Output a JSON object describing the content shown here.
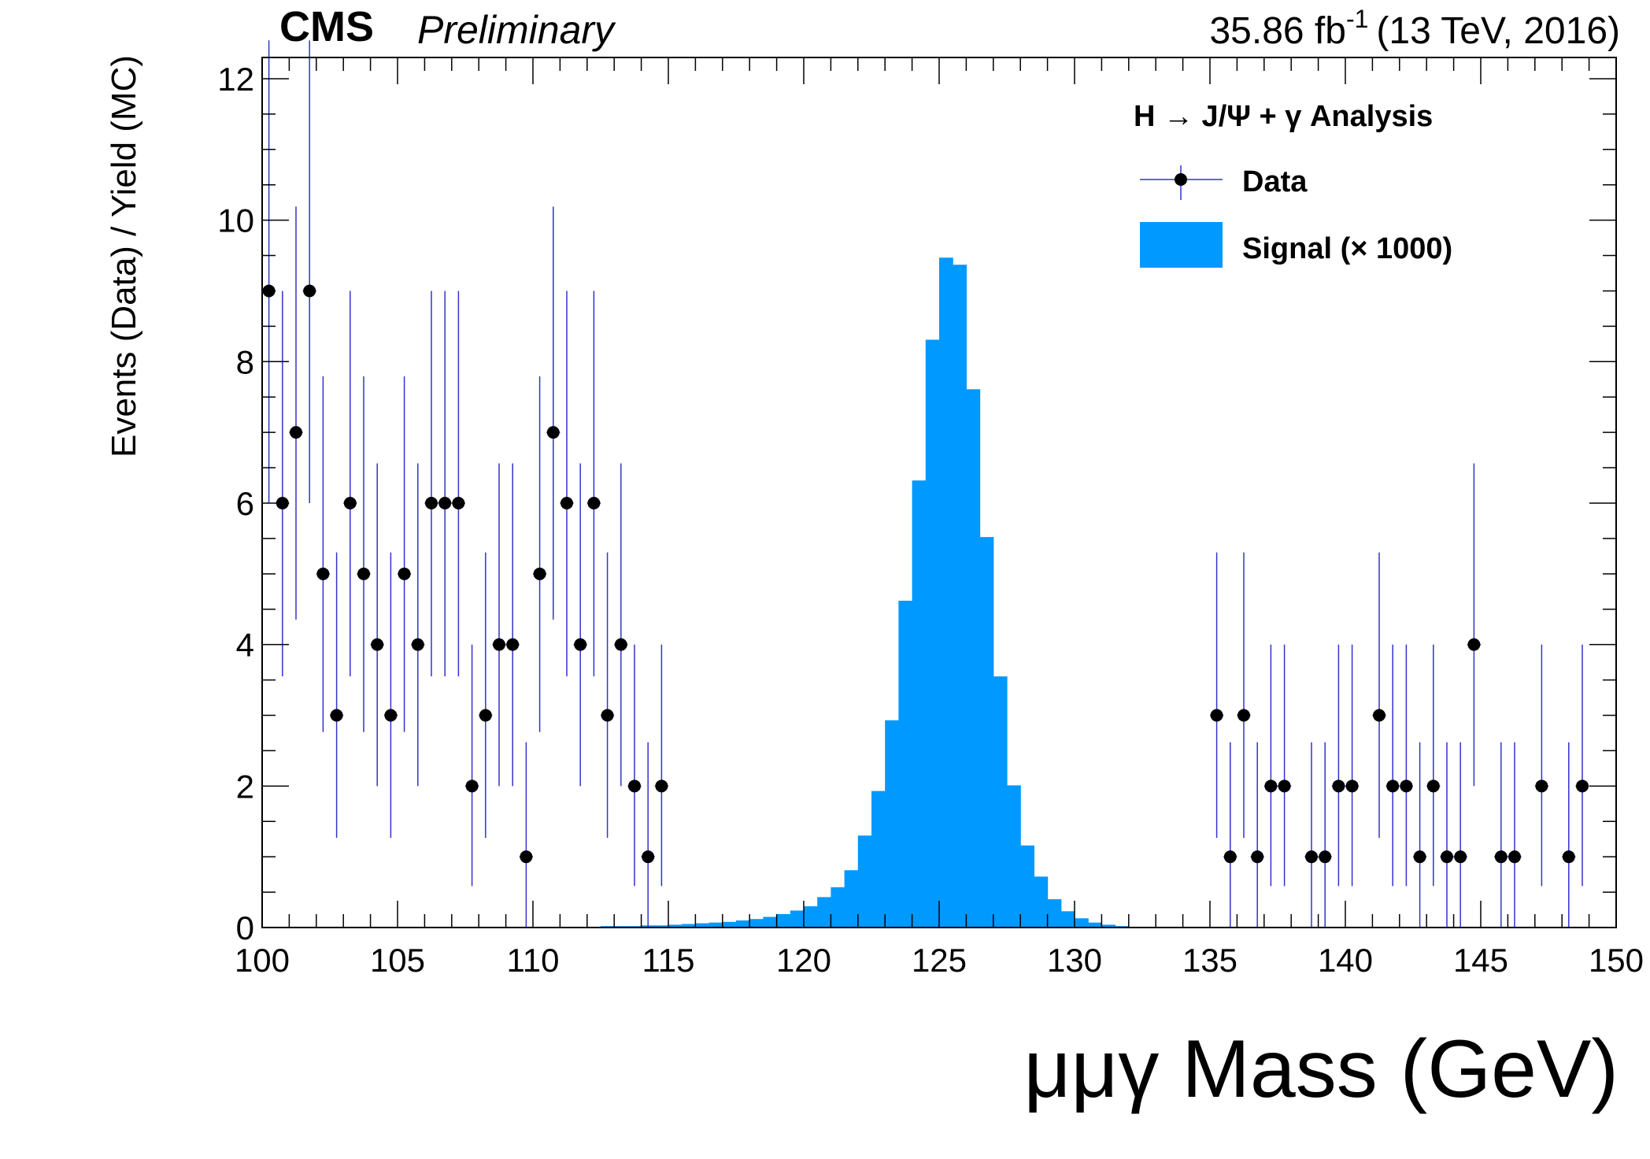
{
  "header": {
    "experiment": "CMS",
    "status": "Preliminary",
    "lumi_value": "35.86 fb",
    "lumi_exponent": "-1",
    "lumi_conditions": "(13 TeV, 2016)"
  },
  "legend": {
    "title": "H → J/Ψ + γ Analysis",
    "data_label": "Data",
    "signal_label": "Signal (× 1000)"
  },
  "colors": {
    "signal_fill": "#0099ff",
    "error_bar": "#3333cc",
    "marker": "#000000",
    "frame": "#000000"
  },
  "chart_data": {
    "type": "bar",
    "xlabel": "μμγ Mass (GeV)",
    "ylabel": "Events (Data) / Yield (MC)",
    "xlim": [
      100,
      150
    ],
    "ylim": [
      0,
      12.3
    ],
    "xticks": [
      100,
      105,
      110,
      115,
      120,
      125,
      130,
      135,
      140,
      145,
      150
    ],
    "yticks": [
      0,
      2,
      4,
      6,
      8,
      10,
      12
    ],
    "grid": false,
    "legend_position": "top-right",
    "series": [
      {
        "name": "Data",
        "kind": "points-with-errors",
        "bin_width": 0.5,
        "x": [
          100.25,
          100.75,
          101.25,
          101.75,
          102.25,
          102.75,
          103.25,
          103.75,
          104.25,
          104.75,
          105.25,
          105.75,
          106.25,
          106.75,
          107.25,
          107.75,
          108.25,
          108.75,
          109.25,
          109.75,
          110.25,
          110.75,
          111.25,
          111.75,
          112.25,
          112.75,
          113.25,
          113.75,
          114.25,
          114.75,
          135.25,
          135.75,
          136.25,
          136.75,
          137.25,
          137.75,
          138.75,
          139.25,
          139.75,
          140.25,
          141.25,
          141.75,
          142.25,
          142.75,
          143.25,
          143.75,
          144.25,
          144.75,
          145.75,
          146.25,
          147.25,
          148.25,
          148.75
        ],
        "y": [
          9,
          6,
          7,
          9,
          5,
          3,
          6,
          5,
          4,
          3,
          5,
          4,
          6,
          6,
          6,
          2,
          3,
          4,
          4,
          1,
          5,
          7,
          6,
          4,
          6,
          3,
          4,
          2,
          1,
          2,
          3,
          1,
          3,
          1,
          2,
          2,
          1,
          1,
          2,
          2,
          3,
          2,
          2,
          1,
          2,
          1,
          1,
          4,
          1,
          1,
          2,
          1,
          2
        ]
      },
      {
        "name": "Signal (× 1000)",
        "kind": "histogram",
        "bin_edges_start": 100,
        "bin_width": 0.5,
        "values": [
          0.01,
          0.01,
          0.01,
          0.01,
          0.01,
          0.01,
          0.01,
          0.01,
          0.01,
          0.01,
          0.01,
          0.01,
          0.01,
          0.01,
          0.01,
          0.01,
          0.01,
          0.01,
          0.01,
          0.01,
          0.01,
          0.01,
          0.01,
          0.01,
          0.01,
          0.02,
          0.02,
          0.02,
          0.03,
          0.03,
          0.04,
          0.05,
          0.06,
          0.07,
          0.08,
          0.1,
          0.12,
          0.15,
          0.19,
          0.24,
          0.3,
          0.43,
          0.57,
          0.81,
          1.3,
          1.93,
          2.93,
          4.62,
          6.32,
          8.31,
          9.47,
          9.37,
          7.61,
          5.52,
          3.55,
          2.01,
          1.16,
          0.72,
          0.4,
          0.23,
          0.13,
          0.07,
          0.04,
          0.02,
          0.01,
          0.01,
          0.01,
          0,
          0,
          0,
          0,
          0,
          0,
          0,
          0,
          0,
          0,
          0,
          0,
          0,
          0,
          0,
          0,
          0,
          0,
          0,
          0,
          0,
          0,
          0,
          0,
          0,
          0,
          0,
          0,
          0,
          0,
          0,
          0,
          0
        ]
      }
    ]
  }
}
